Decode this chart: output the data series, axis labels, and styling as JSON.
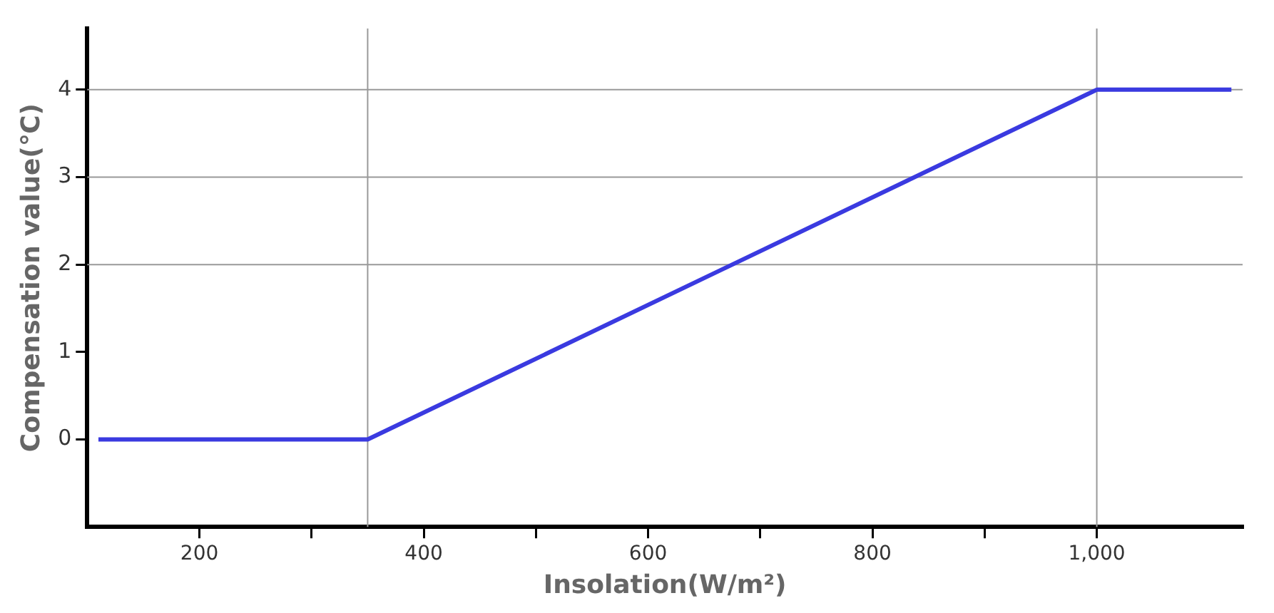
{
  "chart_data": {
    "type": "line",
    "xlabel": "Insolation(W/m²)",
    "ylabel": "Compensation value(℃)",
    "x": [
      110,
      350,
      1000,
      1120
    ],
    "series": [
      {
        "color": "#3a3ae0",
        "values": [
          0,
          0,
          4,
          4
        ]
      }
    ],
    "xlim": [
      100,
      1130
    ],
    "ylim": [
      -1,
      4.7
    ],
    "xticks": [
      200,
      {
        "value": 300,
        "label": null
      },
      400,
      {
        "value": 500,
        "label": null
      },
      600,
      {
        "value": 700,
        "label": null
      },
      800,
      {
        "value": 900,
        "label": null
      },
      {
        "value": 1000,
        "label": "1,000"
      }
    ],
    "yticks": [
      0,
      1,
      2,
      3,
      4
    ],
    "grid": false,
    "legend": false,
    "marker": "none",
    "line_style": "solid",
    "ref_lines": [
      {
        "axis": "y",
        "value": 2,
        "color": "#999999"
      },
      {
        "axis": "y",
        "value": 3,
        "color": "#999999"
      },
      {
        "axis": "y",
        "value": 4,
        "color": "#999999"
      },
      {
        "axis": "x",
        "value": 350,
        "color": "#999999"
      },
      {
        "axis": "x",
        "value": 1000,
        "color": "#999999"
      }
    ]
  }
}
